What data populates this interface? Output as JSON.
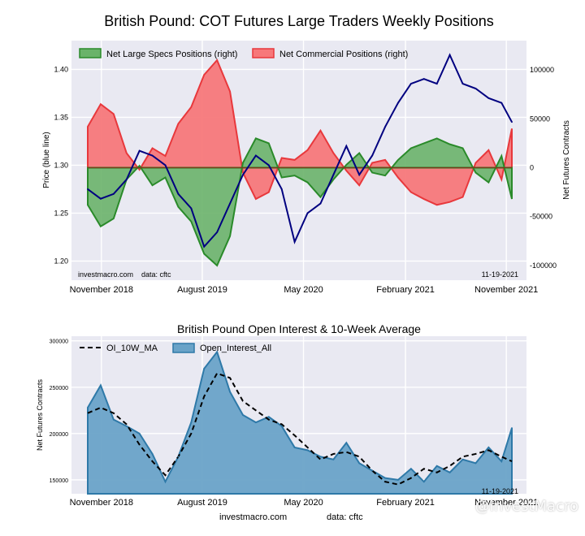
{
  "page": {
    "footer_site": "investmacro.com",
    "footer_data": "data: cftc",
    "watermark": "@InvestMacro"
  },
  "colors": {
    "background_plot": "#e9e9f2",
    "grid": "#ffffff",
    "price_line": "#000080",
    "specs_fill": "#6ab36a",
    "specs_line": "#2a8a2a",
    "comm_fill": "#f7787a",
    "comm_line": "#e8383c",
    "oi_fill": "#6aa3c8",
    "oi_line": "#2e79a8",
    "ma_line": "#000000"
  },
  "chart_data": [
    {
      "type": "area",
      "title": "British Pound: COT Futures Large Traders Weekly Positions",
      "ylabel_left": "Price (blue line)",
      "ylabel_right": "Net Futures Contracts",
      "legend_placement": "top-left",
      "grid": true,
      "annotation_left": "investmacro.com    data: cftc",
      "annotation_right": "11-19-2021",
      "x_tick_labels": [
        "November 2018",
        "August 2019",
        "May 2020",
        "February 2021",
        "November 2021"
      ],
      "ylim_left": [
        1.18,
        1.43
      ],
      "ylim_right": [
        -115000,
        130000
      ],
      "y_ticks_left": [
        1.2,
        1.25,
        1.3,
        1.35,
        1.4
      ],
      "y_tick_labels_left": [
        "1.20",
        "1.25",
        "1.30",
        "1.35",
        "1.40"
      ],
      "y_ticks_right": [
        -100000,
        -50000,
        0,
        50000,
        100000
      ],
      "y_tick_labels_right": [
        "-100000",
        "-50000",
        "0",
        "50000",
        "100000"
      ],
      "x": [
        "2018-09-25",
        "2018-10-30",
        "2018-12-04",
        "2019-01-08",
        "2019-02-12",
        "2019-03-19",
        "2019-04-23",
        "2019-05-28",
        "2019-07-02",
        "2019-08-06",
        "2019-09-10",
        "2019-10-15",
        "2019-11-19",
        "2019-12-24",
        "2020-01-28",
        "2020-03-03",
        "2020-04-07",
        "2020-05-12",
        "2020-06-16",
        "2020-07-21",
        "2020-08-25",
        "2020-09-29",
        "2020-11-03",
        "2020-12-08",
        "2021-01-12",
        "2021-02-16",
        "2021-03-23",
        "2021-04-27",
        "2021-06-01",
        "2021-07-06",
        "2021-08-10",
        "2021-09-14",
        "2021-10-19",
        "2021-11-16"
      ],
      "series": [
        {
          "name": "Net Large Specs Positions (right)",
          "axis": "right",
          "values": [
            -38000,
            -60000,
            -52000,
            -12000,
            2000,
            -18000,
            -10000,
            -40000,
            -55000,
            -88000,
            -100000,
            -70000,
            5000,
            30000,
            25000,
            -10000,
            -8000,
            -15000,
            -30000,
            -12000,
            3000,
            15000,
            -5000,
            -8000,
            8000,
            20000,
            25000,
            30000,
            24000,
            20000,
            -5000,
            -15000,
            12000,
            -32000
          ]
        },
        {
          "name": "Net Commercial Positions (right)",
          "axis": "right",
          "values": [
            42000,
            65000,
            55000,
            15000,
            -2000,
            20000,
            12000,
            45000,
            62000,
            95000,
            110000,
            78000,
            -5000,
            -32000,
            -25000,
            10000,
            8000,
            18000,
            38000,
            15000,
            -3000,
            -18000,
            5000,
            8000,
            -10000,
            -25000,
            -32000,
            -38000,
            -35000,
            -30000,
            5000,
            18000,
            -12000,
            40000
          ]
        },
        {
          "name": "Price",
          "axis": "left",
          "values": [
            1.275,
            1.265,
            1.27,
            1.285,
            1.315,
            1.31,
            1.3,
            1.27,
            1.255,
            1.215,
            1.23,
            1.26,
            1.29,
            1.31,
            1.3,
            1.275,
            1.22,
            1.25,
            1.26,
            1.29,
            1.32,
            1.29,
            1.31,
            1.34,
            1.365,
            1.385,
            1.39,
            1.385,
            1.415,
            1.385,
            1.38,
            1.37,
            1.365,
            1.345
          ]
        }
      ]
    },
    {
      "type": "area",
      "title": "British Pound Open Interest & 10-Week Average",
      "ylabel": "Net Futures Contracts",
      "legend_placement": "top-left",
      "grid": true,
      "annotation_right": "11-19-2021",
      "x_tick_labels": [
        "November 2018",
        "August 2019",
        "May 2020",
        "February 2021",
        "November 2021"
      ],
      "ylim": [
        135000,
        305000
      ],
      "y_ticks": [
        150000,
        200000,
        250000,
        300000
      ],
      "y_tick_labels": [
        "150000",
        "200000",
        "250000",
        "300000"
      ],
      "x": [
        "2018-09-25",
        "2018-10-30",
        "2018-12-04",
        "2019-01-08",
        "2019-02-12",
        "2019-03-19",
        "2019-04-23",
        "2019-05-28",
        "2019-07-02",
        "2019-08-06",
        "2019-09-10",
        "2019-10-15",
        "2019-11-19",
        "2019-12-24",
        "2020-01-28",
        "2020-03-03",
        "2020-04-07",
        "2020-05-12",
        "2020-06-16",
        "2020-07-21",
        "2020-08-25",
        "2020-09-29",
        "2020-11-03",
        "2020-12-08",
        "2021-01-12",
        "2021-02-16",
        "2021-03-23",
        "2021-04-27",
        "2021-06-01",
        "2021-07-06",
        "2021-08-10",
        "2021-09-14",
        "2021-10-19",
        "2021-11-16"
      ],
      "series": [
        {
          "name": "Open_Interest_All",
          "values": [
            228000,
            252000,
            215000,
            208000,
            200000,
            178000,
            148000,
            175000,
            212000,
            270000,
            288000,
            245000,
            220000,
            212000,
            218000,
            208000,
            185000,
            182000,
            175000,
            172000,
            190000,
            168000,
            160000,
            152000,
            150000,
            162000,
            148000,
            165000,
            158000,
            172000,
            168000,
            185000,
            170000,
            206000
          ]
        },
        {
          "name": "OI_10W_MA",
          "values": [
            222000,
            228000,
            222000,
            210000,
            188000,
            170000,
            155000,
            175000,
            200000,
            240000,
            265000,
            260000,
            235000,
            225000,
            215000,
            210000,
            198000,
            185000,
            172000,
            178000,
            180000,
            175000,
            160000,
            148000,
            145000,
            152000,
            162000,
            158000,
            165000,
            175000,
            178000,
            182000,
            175000,
            170000
          ]
        }
      ]
    }
  ]
}
